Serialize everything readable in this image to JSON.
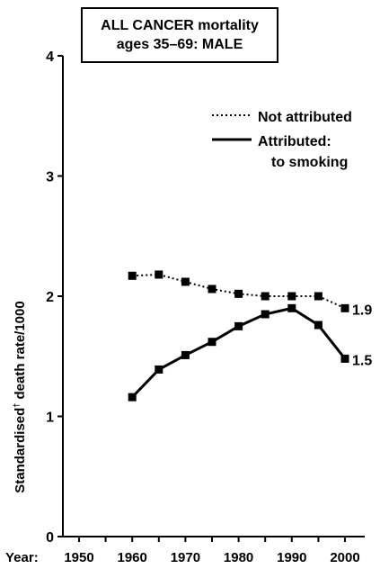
{
  "chart_data": {
    "type": "line",
    "title_line1": "ALL CANCER mortality",
    "title_line2": "ages 35–69:  MALE",
    "ylabel": "Standardised",
    "ylabel_mark": "†",
    "ylabel_rest": " death rate/1000",
    "x_prefix": "Year:",
    "xlim": [
      1950,
      2000
    ],
    "ylim": [
      0,
      4
    ],
    "x_ticks": [
      1950,
      1960,
      1970,
      1980,
      1990,
      2000
    ],
    "y_ticks": [
      0,
      1,
      2,
      3,
      4
    ],
    "legend_position": "top-right",
    "series": [
      {
        "name": "Not attributed",
        "style": "dotted",
        "color": "#000000",
        "x": [
          1960,
          1965,
          1970,
          1975,
          1980,
          1985,
          1990,
          1995,
          2000
        ],
        "y": [
          2.17,
          2.18,
          2.12,
          2.06,
          2.02,
          2.0,
          2.0,
          2.0,
          1.9
        ],
        "end_label": "1.9"
      },
      {
        "name": "Attributed:",
        "name_line2": "to smoking",
        "style": "solid",
        "color": "#000000",
        "x": [
          1960,
          1965,
          1970,
          1975,
          1980,
          1985,
          1990,
          1995,
          2000
        ],
        "y": [
          1.16,
          1.39,
          1.51,
          1.62,
          1.75,
          1.85,
          1.9,
          1.76,
          1.48
        ],
        "end_label": "1.5"
      }
    ]
  }
}
